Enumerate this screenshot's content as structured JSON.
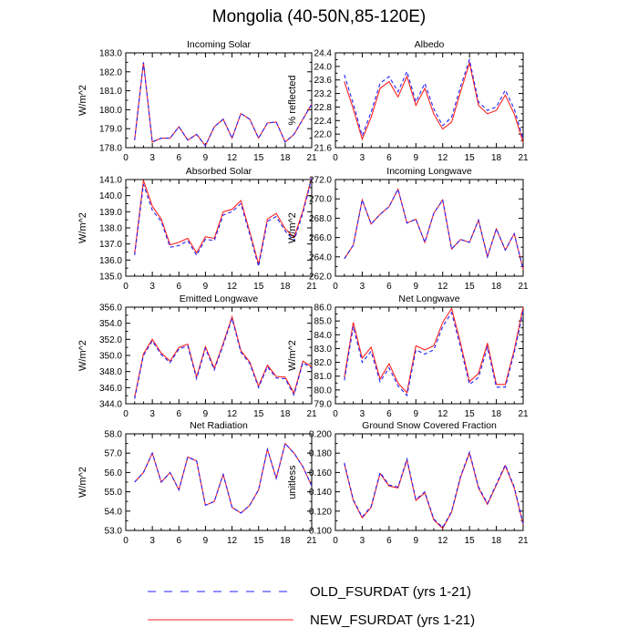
{
  "title": "Mongolia (40-50N,85-120E)",
  "legend": [
    {
      "name": "OLD_FSURDAT (yrs 1-21)",
      "color": "#2222ff",
      "style": "dashed"
    },
    {
      "name": "NEW_FSURDAT (yrs 1-21)",
      "color": "#ff2222",
      "style": "solid"
    }
  ],
  "chart_data": [
    {
      "type": "line",
      "title": "Incoming Solar",
      "xlabel": "",
      "ylabel": "W/m^2",
      "xlim": [
        0,
        21
      ],
      "ylim": [
        178.0,
        183.0
      ],
      "xticks": [
        "0",
        "3",
        "6",
        "9",
        "12",
        "15",
        "18",
        "21"
      ],
      "yticks": [
        "178.0",
        "179.0",
        "180.0",
        "181.0",
        "182.0",
        "183.0"
      ],
      "x": [
        1,
        2,
        3,
        4,
        5,
        6,
        7,
        8,
        9,
        10,
        11,
        12,
        13,
        14,
        15,
        16,
        17,
        18,
        19,
        20,
        21
      ],
      "series": [
        {
          "name": "OLD_FSURDAT (yrs 1-21)",
          "values": [
            178.4,
            182.5,
            178.3,
            178.5,
            178.5,
            179.1,
            178.4,
            178.7,
            178.1,
            179.1,
            179.5,
            178.5,
            179.8,
            179.5,
            178.5,
            179.3,
            179.35,
            178.3,
            178.7,
            179.5,
            180.3
          ]
        },
        {
          "name": "NEW_FSURDAT (yrs 1-21)",
          "values": [
            178.4,
            182.5,
            178.3,
            178.5,
            178.5,
            179.1,
            178.4,
            178.7,
            178.1,
            179.1,
            179.5,
            178.5,
            179.8,
            179.5,
            178.5,
            179.3,
            179.35,
            178.3,
            178.7,
            179.5,
            180.3
          ]
        }
      ]
    },
    {
      "type": "line",
      "title": "Albedo",
      "xlabel": "",
      "ylabel": "% reflected",
      "xlim": [
        0,
        21
      ],
      "ylim": [
        21.6,
        24.4
      ],
      "xticks": [
        "0",
        "3",
        "6",
        "9",
        "12",
        "15",
        "18",
        "21"
      ],
      "yticks": [
        "21.6",
        "22.0",
        "22.4",
        "22.8",
        "23.2",
        "23.6",
        "24.0",
        "24.4"
      ],
      "x": [
        1,
        2,
        3,
        4,
        5,
        6,
        7,
        8,
        9,
        10,
        11,
        12,
        13,
        14,
        15,
        16,
        17,
        18,
        19,
        20,
        21
      ],
      "series": [
        {
          "name": "OLD_FSURDAT (yrs 1-21)",
          "values": [
            23.75,
            22.9,
            21.95,
            22.65,
            23.5,
            23.7,
            23.25,
            23.85,
            22.95,
            23.5,
            22.75,
            22.25,
            22.5,
            23.4,
            24.2,
            22.95,
            22.7,
            22.8,
            23.3,
            22.75,
            21.85
          ]
        },
        {
          "name": "NEW_FSURDAT (yrs 1-21)",
          "values": [
            23.55,
            22.75,
            21.85,
            22.5,
            23.35,
            23.55,
            23.1,
            23.7,
            22.85,
            23.35,
            22.6,
            22.15,
            22.35,
            23.25,
            24.1,
            22.85,
            22.6,
            22.7,
            23.15,
            22.6,
            21.75
          ]
        }
      ]
    },
    {
      "type": "line",
      "title": "Absorbed Solar",
      "xlabel": "",
      "ylabel": "W/m^2",
      "xlim": [
        0,
        21
      ],
      "ylim": [
        135.0,
        141.0
      ],
      "xticks": [
        "0",
        "3",
        "6",
        "9",
        "12",
        "15",
        "18",
        "21"
      ],
      "yticks": [
        "135.0",
        "136.0",
        "137.0",
        "138.0",
        "139.0",
        "140.0",
        "141.0"
      ],
      "x": [
        1,
        2,
        3,
        4,
        5,
        6,
        7,
        8,
        9,
        10,
        11,
        12,
        13,
        14,
        15,
        16,
        17,
        18,
        19,
        20,
        21
      ],
      "series": [
        {
          "name": "OLD_FSURDAT (yrs 1-21)",
          "values": [
            136.3,
            140.7,
            139.1,
            138.4,
            136.8,
            136.9,
            137.2,
            136.3,
            137.3,
            137.2,
            138.8,
            139.0,
            139.5,
            137.6,
            135.6,
            138.4,
            138.7,
            137.8,
            137.2,
            138.9,
            141.1
          ]
        },
        {
          "name": "NEW_FSURDAT (yrs 1-21)",
          "values": [
            136.4,
            140.95,
            139.35,
            138.55,
            136.95,
            137.1,
            137.35,
            136.45,
            137.45,
            137.35,
            139.0,
            139.15,
            139.7,
            137.75,
            135.75,
            138.55,
            138.9,
            137.95,
            137.4,
            139.05,
            141.15
          ]
        }
      ]
    },
    {
      "type": "line",
      "title": "Incoming Longwave",
      "xlabel": "",
      "ylabel": "W/m^2",
      "xlim": [
        0,
        21
      ],
      "ylim": [
        262.0,
        272.0
      ],
      "xticks": [
        "0",
        "3",
        "6",
        "9",
        "12",
        "15",
        "18",
        "21"
      ],
      "yticks": [
        "262.0",
        "264.0",
        "266.0",
        "268.0",
        "270.0",
        "272.0"
      ],
      "x": [
        1,
        2,
        3,
        4,
        5,
        6,
        7,
        8,
        9,
        10,
        11,
        12,
        13,
        14,
        15,
        16,
        17,
        18,
        19,
        20,
        21
      ],
      "series": [
        {
          "name": "OLD_FSURDAT (yrs 1-21)",
          "values": [
            263.8,
            265.2,
            269.9,
            267.4,
            268.4,
            269.2,
            271.0,
            267.5,
            267.9,
            265.5,
            268.5,
            269.9,
            264.8,
            265.8,
            265.5,
            267.8,
            264.0,
            266.9,
            264.7,
            266.4,
            262.7
          ]
        },
        {
          "name": "NEW_FSURDAT (yrs 1-21)",
          "values": [
            263.8,
            265.2,
            269.9,
            267.4,
            268.4,
            269.2,
            271.0,
            267.5,
            267.9,
            265.5,
            268.5,
            269.9,
            264.8,
            265.8,
            265.5,
            267.8,
            264.0,
            266.9,
            264.7,
            266.4,
            262.7
          ]
        }
      ]
    },
    {
      "type": "line",
      "title": "Emitted Longwave",
      "xlabel": "",
      "ylabel": "W/m^2",
      "xlim": [
        0,
        21
      ],
      "ylim": [
        344.0,
        356.0
      ],
      "xticks": [
        "0",
        "3",
        "6",
        "9",
        "12",
        "15",
        "18",
        "21"
      ],
      "yticks": [
        "344.0",
        "346.0",
        "348.0",
        "350.0",
        "352.0",
        "354.0",
        "356.0"
      ],
      "x": [
        1,
        2,
        3,
        4,
        5,
        6,
        7,
        8,
        9,
        10,
        11,
        12,
        13,
        14,
        15,
        16,
        17,
        18,
        19,
        20,
        21
      ],
      "series": [
        {
          "name": "OLD_FSURDAT (yrs 1-21)",
          "values": [
            344.6,
            350.0,
            351.8,
            350.1,
            349.1,
            350.8,
            351.2,
            347.1,
            350.9,
            348.2,
            351.3,
            354.6,
            350.4,
            349.0,
            346.0,
            348.6,
            347.2,
            347.1,
            345.1,
            349.1,
            348.4
          ]
        },
        {
          "name": "NEW_FSURDAT (yrs 1-21)",
          "values": [
            344.8,
            350.2,
            352.0,
            350.3,
            349.3,
            351.0,
            351.4,
            347.3,
            351.1,
            348.4,
            351.5,
            354.8,
            350.6,
            349.2,
            346.2,
            348.8,
            347.4,
            347.3,
            345.3,
            349.3,
            348.6
          ]
        }
      ]
    },
    {
      "type": "line",
      "title": "Net Longwave",
      "xlabel": "",
      "ylabel": "W/m^2",
      "xlim": [
        0,
        21
      ],
      "ylim": [
        79.0,
        86.0
      ],
      "xticks": [
        "0",
        "3",
        "6",
        "9",
        "12",
        "15",
        "18",
        "21"
      ],
      "yticks": [
        "79.0",
        "80.0",
        "81.0",
        "82.0",
        "83.0",
        "84.0",
        "85.0",
        "86.0"
      ],
      "x": [
        1,
        2,
        3,
        4,
        5,
        6,
        7,
        8,
        9,
        10,
        11,
        12,
        13,
        14,
        15,
        16,
        17,
        18,
        19,
        20,
        21
      ],
      "series": [
        {
          "name": "OLD_FSURDAT (yrs 1-21)",
          "values": [
            80.7,
            84.6,
            82.0,
            82.8,
            80.6,
            81.6,
            80.3,
            79.6,
            82.9,
            82.6,
            82.9,
            84.6,
            85.6,
            83.1,
            80.4,
            80.9,
            83.1,
            80.2,
            80.2,
            82.7,
            85.7
          ]
        },
        {
          "name": "NEW_FSURDAT (yrs 1-21)",
          "values": [
            80.9,
            84.9,
            82.3,
            83.1,
            80.8,
            81.9,
            80.5,
            79.8,
            83.2,
            82.9,
            83.2,
            84.9,
            85.9,
            83.4,
            80.6,
            81.2,
            83.4,
            80.4,
            80.4,
            82.9,
            86.0
          ]
        }
      ]
    },
    {
      "type": "line",
      "title": "Net Radiation",
      "xlabel": "",
      "ylabel": "W/m^2",
      "xlim": [
        0,
        21
      ],
      "ylim": [
        53.0,
        58.0
      ],
      "xticks": [
        "0",
        "3",
        "6",
        "9",
        "12",
        "15",
        "18",
        "21"
      ],
      "yticks": [
        "53.0",
        "54.0",
        "55.0",
        "56.0",
        "57.0",
        "58.0"
      ],
      "x": [
        1,
        2,
        3,
        4,
        5,
        6,
        7,
        8,
        9,
        10,
        11,
        12,
        13,
        14,
        15,
        16,
        17,
        18,
        19,
        20,
        21
      ],
      "series": [
        {
          "name": "OLD_FSURDAT (yrs 1-21)",
          "values": [
            55.5,
            56.0,
            57.0,
            55.5,
            56.0,
            55.1,
            56.8,
            56.6,
            54.3,
            54.5,
            55.9,
            54.2,
            53.9,
            54.3,
            55.1,
            57.2,
            55.7,
            57.5,
            57.0,
            56.3,
            55.3
          ]
        },
        {
          "name": "NEW_FSURDAT (yrs 1-21)",
          "values": [
            55.5,
            56.0,
            57.0,
            55.5,
            56.0,
            55.1,
            56.8,
            56.6,
            54.3,
            54.5,
            55.9,
            54.2,
            53.9,
            54.3,
            55.1,
            57.2,
            55.7,
            57.5,
            57.0,
            56.3,
            55.3
          ]
        }
      ]
    },
    {
      "type": "line",
      "title": "Ground Snow Covered Fraction",
      "xlabel": "",
      "ylabel": "unitless",
      "xlim": [
        0,
        21
      ],
      "ylim": [
        0.1,
        0.2
      ],
      "xticks": [
        "0",
        "3",
        "6",
        "9",
        "12",
        "15",
        "18",
        "21"
      ],
      "yticks": [
        "0.100",
        "0.120",
        "0.140",
        "0.160",
        "0.180",
        "0.200"
      ],
      "x": [
        1,
        2,
        3,
        4,
        5,
        6,
        7,
        8,
        9,
        10,
        11,
        12,
        13,
        14,
        15,
        16,
        17,
        18,
        19,
        20,
        21
      ],
      "series": [
        {
          "name": "OLD_FSURDAT (yrs 1-21)",
          "values": [
            0.17,
            0.132,
            0.114,
            0.125,
            0.16,
            0.147,
            0.145,
            0.174,
            0.132,
            0.14,
            0.112,
            0.103,
            0.12,
            0.156,
            0.181,
            0.145,
            0.128,
            0.148,
            0.168,
            0.145,
            0.107
          ]
        },
        {
          "name": "NEW_FSURDAT (yrs 1-21)",
          "values": [
            0.169,
            0.131,
            0.113,
            0.124,
            0.159,
            0.146,
            0.144,
            0.173,
            0.131,
            0.139,
            0.111,
            0.102,
            0.119,
            0.155,
            0.18,
            0.144,
            0.127,
            0.147,
            0.167,
            0.144,
            0.106
          ]
        }
      ]
    }
  ]
}
